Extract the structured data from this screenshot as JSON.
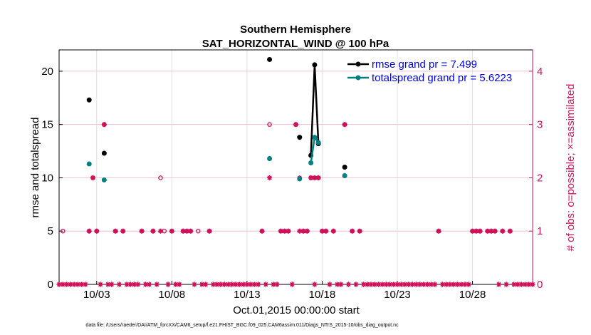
{
  "chart_data": {
    "type": "scatter",
    "title": "Southern Hemisphere",
    "subtitle": "SAT_HORIZONTAL_WIND @ 100 hPa",
    "xlabel": "Oct.01,2015 00:00:00 start",
    "ylabel": "rmse and totalspread",
    "y2label": "# of obs: o=possible; ×=assimilated",
    "footnote": "data file: /Users/raeder/DAI/ATM_forcXX/CAM6_setup/f.e21.FHIST_BGC.f09_025.CAM6assim.011/Diags_NTrS_2015-10/obs_diag_output.nc",
    "xlim": [
      1,
      32.5
    ],
    "ylim": [
      0,
      22
    ],
    "y2lim": [
      0,
      4.4
    ],
    "x_ticks": [
      {
        "x": 3.5,
        "label": "10/03"
      },
      {
        "x": 8.5,
        "label": "10/08"
      },
      {
        "x": 13.5,
        "label": "10/13"
      },
      {
        "x": 18.5,
        "label": "10/18"
      },
      {
        "x": 23.5,
        "label": "10/23"
      },
      {
        "x": 28.5,
        "label": "10/28"
      }
    ],
    "y_ticks": [
      0,
      5,
      10,
      15,
      20
    ],
    "y2_ticks": [
      0,
      1,
      2,
      3,
      4
    ],
    "colors": {
      "rmse": "#000000",
      "spread": "#008080",
      "obs": "#d0105a",
      "legend_text": "#0000e6"
    },
    "series": [
      {
        "name": "rmse grand pr = 7.499",
        "color": "#000000",
        "x": [
          3,
          4,
          15,
          17,
          17.75,
          18,
          18.25,
          20
        ],
        "y": [
          17.3,
          12.3,
          21.1,
          13.8,
          12.1,
          20.6,
          13.2,
          11.0
        ],
        "lines": [
          [
            17.75,
            18,
            18.25
          ]
        ]
      },
      {
        "name": "totalspread grand pr = 5.6223",
        "color": "#008080",
        "x": [
          3,
          4,
          15,
          17,
          17.75,
          18,
          18.25,
          20
        ],
        "y": [
          11.3,
          9.8,
          11.8,
          9.9,
          11.4,
          13.8,
          13.3,
          10.2
        ],
        "lines": [
          [
            17.75,
            18,
            18.25
          ]
        ]
      }
    ],
    "obs_possible": {
      "x": [
        1.25,
        3,
        3.25,
        3.5,
        4,
        4.75,
        5.25,
        6.5,
        7.25,
        7.75,
        8,
        8.5,
        9.25,
        9.5,
        9.75,
        10.25,
        11,
        14.5,
        15,
        15.75,
        16,
        16.25,
        16.75,
        17,
        17.25,
        17.5,
        17.75,
        18,
        18.25,
        18.5,
        18.75,
        19.25,
        20,
        20.5,
        21,
        26.25,
        28.5,
        28.75,
        29,
        29.5,
        29.75,
        30,
        30.5,
        31
      ],
      "y": [
        1,
        1,
        2,
        1,
        3,
        1,
        1,
        1,
        1,
        2,
        1,
        1,
        1,
        1,
        1,
        1,
        1,
        1,
        3,
        1,
        1,
        1,
        3,
        2,
        1,
        1,
        2,
        2,
        2,
        1,
        1,
        1,
        3,
        1,
        1,
        1,
        1,
        1,
        1,
        1,
        1,
        1,
        1,
        1
      ]
    },
    "obs_assimilated": {
      "x": [
        3,
        3.25,
        3.5,
        4,
        4.75,
        5.25,
        6.5,
        7.25,
        7.75,
        8.5,
        9.25,
        9.5,
        9.75,
        11,
        14.5,
        15,
        15.75,
        16,
        16.25,
        16.75,
        17,
        17.25,
        17.5,
        17.75,
        18,
        18.25,
        18.5,
        18.75,
        19.25,
        20,
        20.5,
        21,
        26.25,
        28.5,
        28.75,
        29,
        29.5,
        29.75,
        30,
        30.5,
        31
      ],
      "y": [
        1,
        2,
        1,
        3,
        1,
        1,
        1,
        1,
        1,
        1,
        1,
        1,
        1,
        1,
        1,
        2,
        1,
        1,
        1,
        3,
        1,
        1,
        1,
        2,
        2,
        2,
        1,
        1,
        1,
        3,
        1,
        1,
        1,
        1,
        1,
        1,
        1,
        1,
        1,
        1,
        1
      ]
    },
    "obs_zero_x": [
      1,
      1.25,
      1.5,
      1.75,
      2,
      2.25,
      2.5,
      2.75,
      3.75,
      4.25,
      4.5,
      5,
      5.5,
      5.75,
      6,
      6.25,
      6.75,
      7,
      7.5,
      8.25,
      8.75,
      9,
      10,
      10.5,
      10.75,
      11.25,
      11.5,
      11.75,
      12,
      12.25,
      12.5,
      12.75,
      13,
      13.25,
      13.5,
      13.75,
      14,
      14.25,
      14.75,
      15.25,
      15.5,
      16.5,
      18,
      19,
      19.5,
      19.75,
      20.25,
      20.75,
      21.25,
      21.5,
      21.75,
      22,
      22.25,
      22.5,
      22.75,
      23,
      23.25,
      23.5,
      23.75,
      24,
      24.25,
      24.5,
      24.75,
      25,
      25.25,
      25.5,
      25.75,
      26,
      26.5,
      26.75,
      27,
      27.25,
      27.5,
      27.75,
      28,
      28.25,
      30.25,
      30.75,
      31.25,
      31.5,
      31.75,
      32,
      32.25,
      32.5
    ],
    "grid": true,
    "legend_position": "top-right"
  }
}
